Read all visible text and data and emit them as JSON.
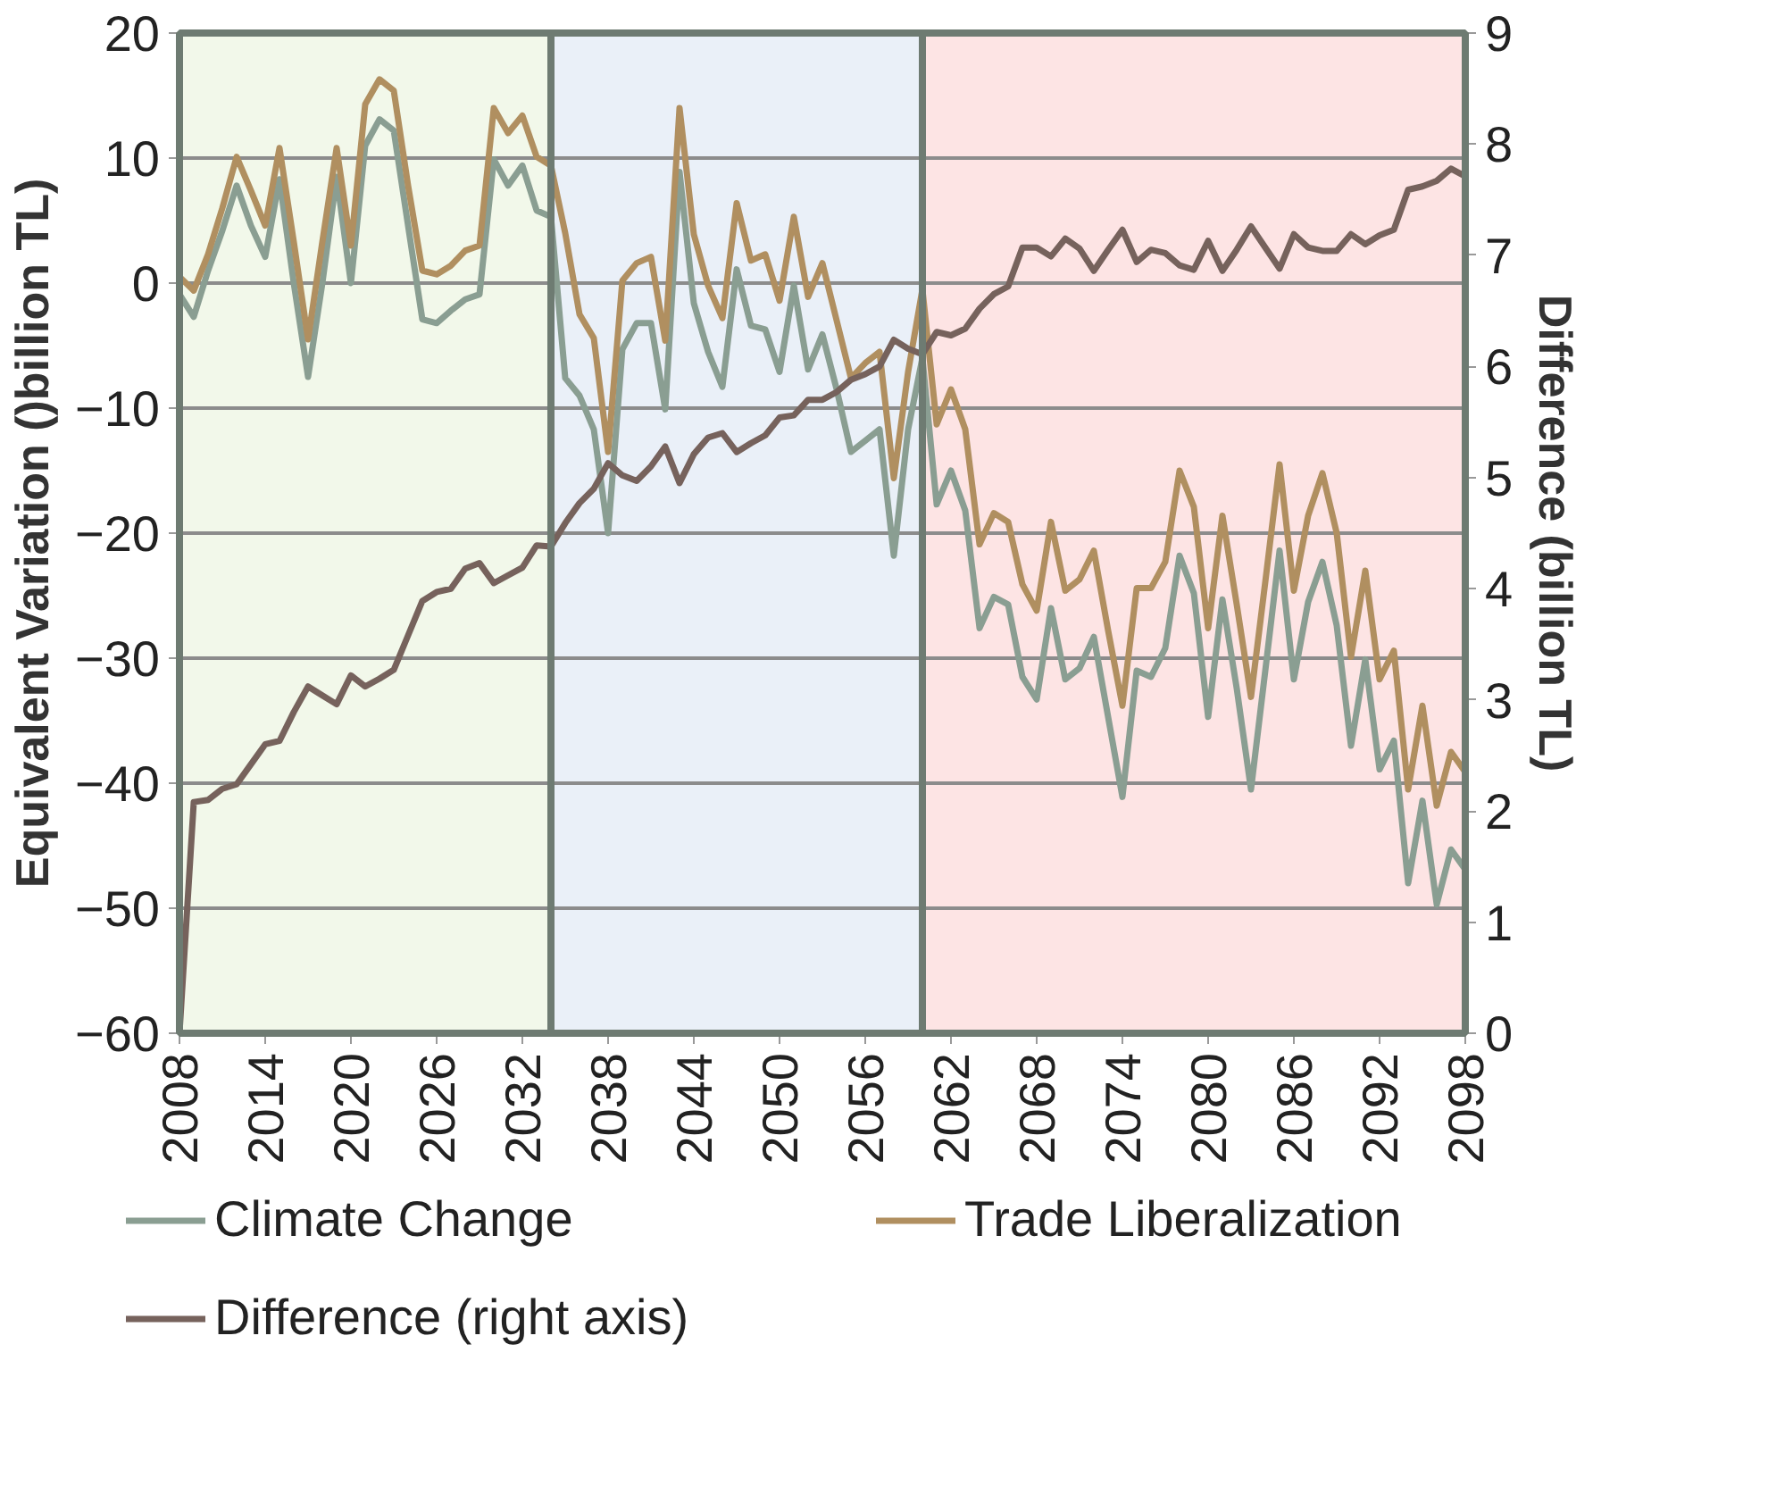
{
  "chart_data": {
    "type": "line",
    "xlabel": null,
    "ylabel": "Equivalent Variation ()billion TL)",
    "y2label": "Difference (billion TL)",
    "x": [
      2008,
      2009,
      2010,
      2011,
      2012,
      2013,
      2014,
      2015,
      2016,
      2017,
      2018,
      2019,
      2020,
      2021,
      2022,
      2023,
      2024,
      2025,
      2026,
      2027,
      2028,
      2029,
      2030,
      2031,
      2032,
      2033,
      2034,
      2035,
      2036,
      2037,
      2038,
      2039,
      2040,
      2041,
      2042,
      2043,
      2044,
      2045,
      2046,
      2047,
      2048,
      2049,
      2050,
      2051,
      2052,
      2053,
      2054,
      2055,
      2056,
      2057,
      2058,
      2059,
      2060,
      2061,
      2062,
      2063,
      2064,
      2065,
      2066,
      2067,
      2068,
      2069,
      2070,
      2071,
      2072,
      2073,
      2074,
      2075,
      2076,
      2077,
      2078,
      2079,
      2080,
      2081,
      2082,
      2083,
      2084,
      2085,
      2086,
      2087,
      2088,
      2089,
      2090,
      2091,
      2092,
      2093,
      2094,
      2095,
      2096,
      2097,
      2098
    ],
    "series": [
      {
        "name": "Climate Change",
        "color": "#8a9e92",
        "values": [
          -0.9,
          -2.7,
          1,
          4.2,
          7.8,
          4.6,
          2.1,
          8.3,
          0,
          -7.5,
          0,
          8.5,
          0,
          11,
          13.1,
          12.2,
          4.6,
          -2.9,
          -3.2,
          -2.2,
          -1.3,
          -0.9,
          9.9,
          7.8,
          9.4,
          5.8,
          5.3,
          -7.6,
          -9,
          -11.7,
          -20,
          -5.3,
          -3.2,
          -3.2,
          -10.1,
          8.9,
          -1.6,
          -5.5,
          -8.3,
          1.1,
          -3.4,
          -3.7,
          -7.1,
          -0.2,
          -6.9,
          -4.1,
          -8.5,
          -13.5,
          -12.6,
          -11.7,
          -21.8,
          -11.7,
          -6,
          -17.7,
          -15,
          -18.2,
          -27.6,
          -25.1,
          -25.7,
          -31.5,
          -33.3,
          -26,
          -31.7,
          -30.8,
          -28.3,
          -34.7,
          -41.1,
          -31,
          -31.5,
          -29.2,
          -21.8,
          -24.8,
          -34.7,
          -25.3,
          -32.4,
          -40.5,
          -31,
          -21.4,
          -31.7,
          -25.5,
          -22.3,
          -27.4,
          -37,
          -30.1,
          -38.9,
          -36.6,
          -48,
          -41.4,
          -49.7,
          -45.3,
          -46.9
        ]
      },
      {
        "name": "Trade Liberalization",
        "color": "#b08f60",
        "values": [
          0.5,
          -0.6,
          2.3,
          6,
          10.1,
          7.4,
          4.6,
          10.8,
          3.3,
          -4.5,
          3.3,
          10.8,
          3,
          14.3,
          16.3,
          15.4,
          7.8,
          1,
          0.7,
          1.4,
          2.6,
          3,
          14,
          12,
          13.4,
          10.1,
          9.4,
          4,
          -2.5,
          -4.4,
          -13.5,
          0.2,
          1.6,
          2.1,
          -4.6,
          14,
          3.9,
          -0.2,
          -2.8,
          6.4,
          1.8,
          2.3,
          -1.4,
          5.3,
          -1.1,
          1.6,
          -3,
          -7.6,
          -6.4,
          -5.5,
          -15.6,
          -7.1,
          -0.5,
          -11.3,
          -8.5,
          -11.7,
          -20.9,
          -18.4,
          -19.1,
          -24.1,
          -26.2,
          -19.1,
          -24.6,
          -23.7,
          -21.4,
          -27.8,
          -33.8,
          -24.4,
          -24.4,
          -22.3,
          -15,
          -17.9,
          -27.6,
          -18.6,
          -25.7,
          -33.1,
          -23.9,
          -14.5,
          -24.6,
          -18.6,
          -15.2,
          -20,
          -29.9,
          -23,
          -31.7,
          -29.4,
          -40.5,
          -33.8,
          -41.8,
          -37.5,
          -39.1
        ]
      },
      {
        "name": "Difference (right axis)",
        "color": "#76625c",
        "axis": "y2",
        "values": [
          0,
          2.08,
          2.1,
          2.2,
          2.24,
          2.42,
          2.6,
          2.63,
          2.89,
          3.12,
          3.04,
          2.96,
          3.22,
          3.12,
          3.19,
          3.27,
          3.58,
          3.89,
          3.97,
          4.0,
          4.18,
          4.23,
          4.05,
          4.12,
          4.19,
          4.39,
          4.38,
          4.59,
          4.77,
          4.9,
          5.13,
          5.02,
          4.97,
          5.1,
          5.28,
          4.95,
          5.21,
          5.36,
          5.4,
          5.23,
          5.31,
          5.38,
          5.54,
          5.56,
          5.7,
          5.7,
          5.77,
          5.88,
          5.93,
          6.0,
          6.24,
          6.16,
          6.11,
          6.31,
          6.28,
          6.34,
          6.52,
          6.65,
          6.72,
          7.07,
          7.07,
          6.99,
          7.15,
          7.06,
          6.86,
          7.05,
          7.23,
          6.94,
          7.05,
          7.02,
          6.91,
          6.87,
          7.13,
          6.86,
          7.05,
          7.26,
          7.07,
          6.88,
          7.19,
          7.07,
          7.04,
          7.04,
          7.19,
          7.1,
          7.18,
          7.23,
          7.59,
          7.62,
          7.67,
          7.78,
          7.71
        ]
      }
    ],
    "xlim": [
      2008,
      2098
    ],
    "xticks": [
      2008,
      2014,
      2020,
      2026,
      2032,
      2038,
      2044,
      2050,
      2056,
      2062,
      2068,
      2074,
      2080,
      2086,
      2092,
      2098
    ],
    "ylim": [
      -60,
      20
    ],
    "yticks": [
      -60,
      -50,
      -40,
      -30,
      -20,
      -10,
      0,
      10,
      20
    ],
    "y2lim": [
      0,
      9
    ],
    "y2ticks": [
      0,
      1,
      2,
      3,
      4,
      5,
      6,
      7,
      8,
      9
    ],
    "bands": [
      {
        "axis": "x",
        "from": 2008,
        "to": 2034,
        "color": "#f2f8ea"
      },
      {
        "axis": "x",
        "from": 2034,
        "to": 2060,
        "color": "#eaf0f8"
      },
      {
        "axis": "x",
        "from": 2060,
        "to": 2098,
        "color": "#fde4e4"
      }
    ],
    "grid": "y",
    "legend": "bottom",
    "marker": "none",
    "line_style": "solid"
  }
}
